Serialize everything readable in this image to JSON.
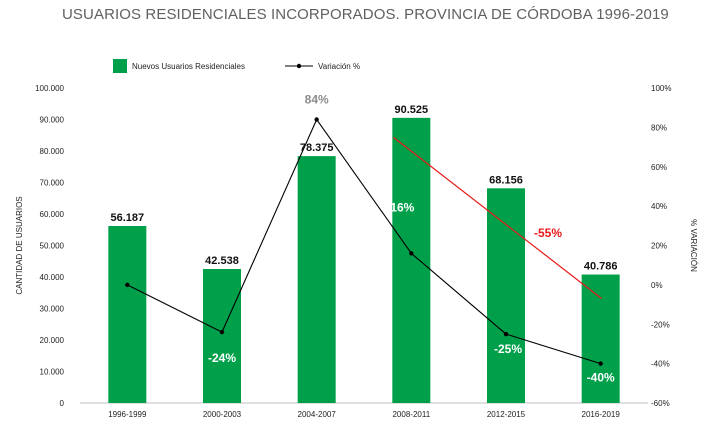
{
  "title": "USUARIOS RESIDENCIALES INCORPORADOS. PROVINCIA DE CÓRDOBA 1996-2019",
  "chart_data": {
    "type": "bar",
    "categories": [
      "1996-1999",
      "2000-2003",
      "2004-2007",
      "2008-2011",
      "2012-2015",
      "2016-2019"
    ],
    "series": [
      {
        "name": "Nuevos Usuarios Residenciales",
        "type": "bar",
        "axis": "left",
        "values": [
          56187,
          42538,
          78375,
          90525,
          68156,
          40786
        ],
        "labels": [
          "56.187",
          "42.538",
          "78.375",
          "90.525",
          "68.156",
          "40.786"
        ],
        "color": "#00a04a"
      },
      {
        "name": "Variación %",
        "type": "line",
        "axis": "right",
        "values": [
          0,
          -24,
          84,
          16,
          -25,
          -40
        ],
        "labels": [
          "",
          "-24%",
          "84%",
          "16%",
          "-25%",
          "-40%"
        ],
        "color": "#000000"
      }
    ],
    "trend": {
      "from_category": "2008-2011",
      "to_category": "2016-2019",
      "from_value": 75,
      "to_value": -7,
      "label": "-55%",
      "color": "#e8191a"
    },
    "ylabel": "CANTIDAD DE USUARIOS",
    "y2label": "% VARIACIÓN",
    "ylim": [
      0,
      100000
    ],
    "y2lim": [
      -60,
      100
    ],
    "yticks": [
      "0",
      "10.000",
      "20.000",
      "30.000",
      "40.000",
      "50.000",
      "60.000",
      "70.000",
      "80.000",
      "90.000",
      "100.000"
    ],
    "y2ticks": [
      "-60%",
      "-40%",
      "-20%",
      "0%",
      "20%",
      "40%",
      "60%",
      "80%",
      "100%"
    ],
    "legend_position": "top-left"
  }
}
